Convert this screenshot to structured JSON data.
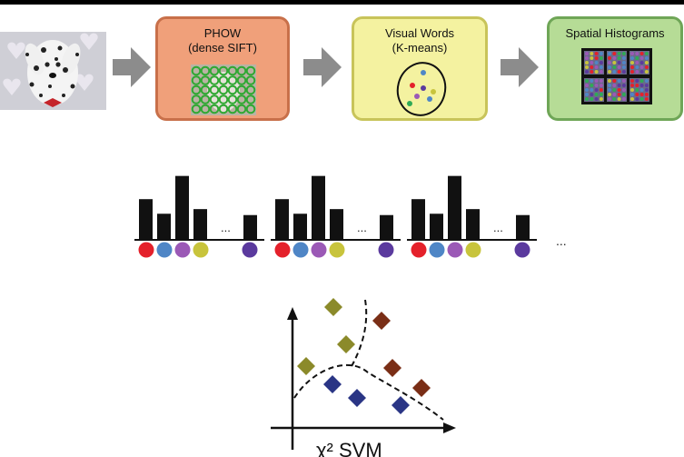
{
  "pipeline": {
    "phow": {
      "title": "PHOW",
      "subtitle": "(dense SIFT)"
    },
    "visual_words": {
      "title": "Visual Words",
      "subtitle": "(K-means)"
    },
    "spatial_histograms": {
      "title": "Spatial Histograms"
    }
  },
  "histograms": {
    "ellipsis": "...",
    "trailing_ellipsis": "...",
    "bar_values": [
      0.6,
      0.38,
      0.95,
      0.45,
      0.36
    ],
    "word_colors": [
      "#e4212b",
      "#4f86c6",
      "#9b59b6",
      "#c8c43c",
      "#5b3a9e"
    ]
  },
  "svm": {
    "label": "χ² SVM",
    "class_colors": {
      "olive": "#8b8a2a",
      "brown": "#7a2e16",
      "navy": "#2a3585"
    }
  }
}
